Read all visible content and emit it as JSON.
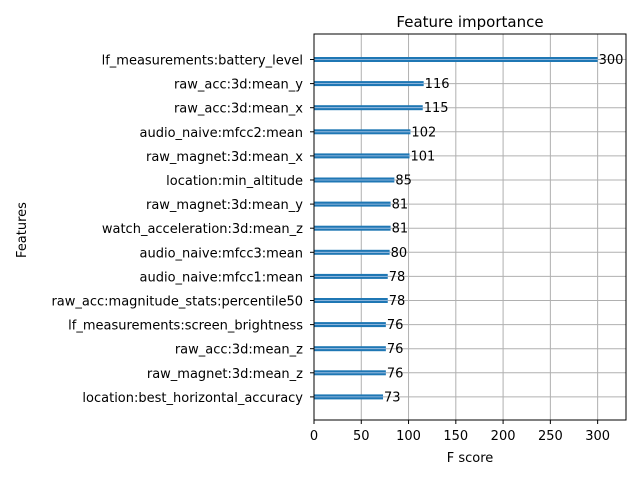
{
  "chart_data": {
    "type": "bar",
    "orientation": "horizontal",
    "title": "Feature importance",
    "xlabel": "F score",
    "ylabel": "Features",
    "xlim": [
      0,
      330
    ],
    "xticks": [
      0,
      50,
      100,
      150,
      200,
      250,
      300
    ],
    "grid": true,
    "bar_color": "#1f77b4",
    "categories": [
      "lf_measurements:battery_level",
      "raw_acc:3d:mean_y",
      "raw_acc:3d:mean_x",
      "audio_naive:mfcc2:mean",
      "raw_magnet:3d:mean_x",
      "location:min_altitude",
      "raw_magnet:3d:mean_y",
      "watch_acceleration:3d:mean_z",
      "audio_naive:mfcc3:mean",
      "audio_naive:mfcc1:mean",
      "raw_acc:magnitude_stats:percentile50",
      "lf_measurements:screen_brightness",
      "raw_acc:3d:mean_z",
      "raw_magnet:3d:mean_z",
      "location:best_horizontal_accuracy"
    ],
    "values": [
      300,
      116,
      115,
      102,
      101,
      85,
      81,
      81,
      80,
      78,
      78,
      76,
      76,
      76,
      73
    ]
  }
}
